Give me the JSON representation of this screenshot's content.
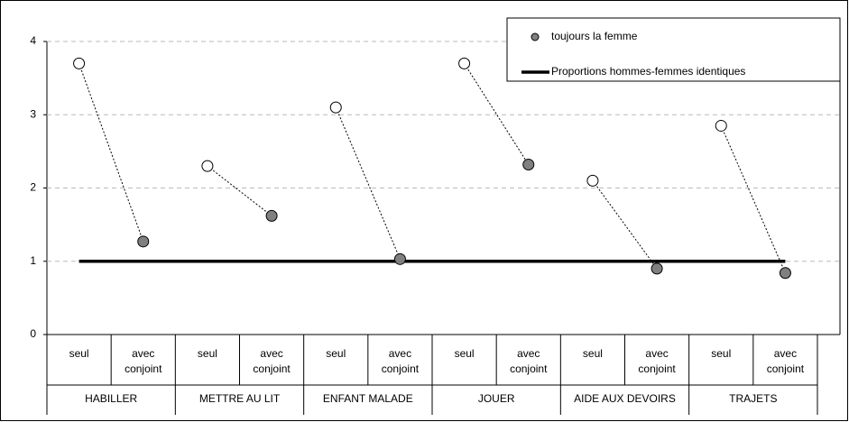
{
  "chart_data": {
    "type": "dot",
    "categories": [
      "seul",
      "avec conjoint",
      "seul",
      "avec conjoint",
      "seul",
      "avec conjoint",
      "seul",
      "avec conjoint",
      "seul",
      "avec conjoint",
      "seul",
      "avec conjoint"
    ],
    "groups": [
      "HABILLER",
      "METTRE AU LIT",
      "ENFANT MALADE",
      "JOUER",
      "AIDE AUX DEVOIRS",
      "TRAJETS"
    ],
    "series": [
      {
        "color": "#ffffff",
        "values": [
          3.7,
          null,
          2.3,
          null,
          3.1,
          null,
          3.7,
          null,
          2.1,
          null,
          2.85,
          null
        ]
      },
      {
        "name": "toujours la femme",
        "color": "#808080",
        "values": [
          null,
          1.27,
          null,
          1.62,
          null,
          1.03,
          null,
          2.32,
          null,
          0.9,
          null,
          0.84
        ]
      }
    ],
    "reference": {
      "name": "Proportions hommes-femmes identiques",
      "value": 1,
      "color": "#000000"
    },
    "ylim": [
      0,
      4
    ],
    "yticks": [
      0,
      1,
      2,
      3,
      4
    ],
    "grid": true,
    "legend": "top-right"
  }
}
